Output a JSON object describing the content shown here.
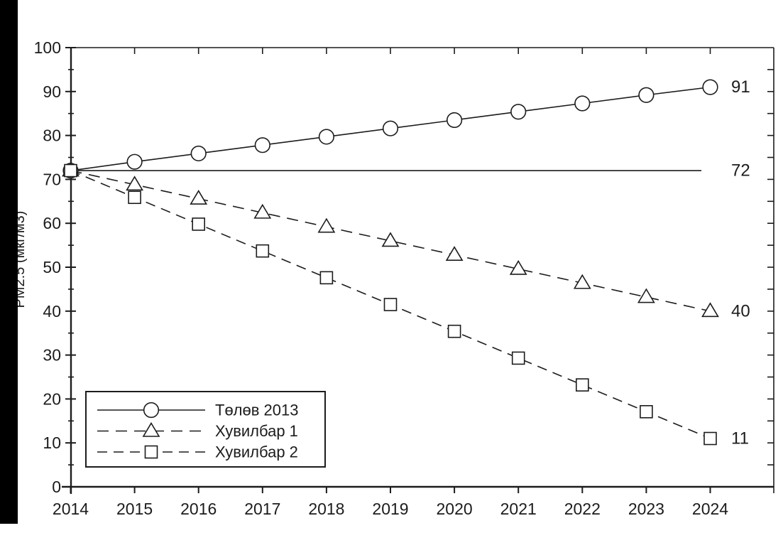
{
  "page": {
    "background_color": "#ffffff",
    "scan_bar_color": "#000000",
    "ink_color": "#1c1c1c"
  },
  "chart_data": {
    "type": "line",
    "title": "",
    "xlabel": "",
    "ylabel": "PM2.5 (мкг/м3)",
    "x": [
      2014,
      2015,
      2016,
      2017,
      2018,
      2019,
      2020,
      2021,
      2022,
      2023,
      2024
    ],
    "x_tick_labels": [
      "2014",
      "2015",
      "2016",
      "2017",
      "2018",
      "2019",
      "2020",
      "2021",
      "2022",
      "2023",
      "2024"
    ],
    "ylim": [
      0,
      100
    ],
    "y_major_ticks": [
      0,
      10,
      20,
      30,
      40,
      50,
      60,
      70,
      80,
      90,
      100
    ],
    "y_major_tick_labels": [
      "0",
      "10",
      "20",
      "30",
      "40",
      "50",
      "60",
      "70",
      "80",
      "90",
      "100"
    ],
    "y_minor_tick_step": 5,
    "grid": false,
    "series": [
      {
        "name": "Төлөв 2013",
        "marker": "circle",
        "line_style": "solid",
        "values": [
          72,
          74,
          75.9,
          77.8,
          79.7,
          81.6,
          83.5,
          85.4,
          87.3,
          89.2,
          91
        ],
        "end_label": "91"
      },
      {
        "name": "Хувилбар 1",
        "marker": "triangle",
        "line_style": "long-dash",
        "values": [
          72,
          68.8,
          65.6,
          62.4,
          59.2,
          56,
          52.8,
          49.6,
          46.4,
          43.2,
          40
        ],
        "end_label": "40"
      },
      {
        "name": "Хувилбар 2",
        "marker": "square",
        "line_style": "dash",
        "values": [
          72,
          65.9,
          59.8,
          53.7,
          47.6,
          41.5,
          35.4,
          29.3,
          23.2,
          17.1,
          11
        ],
        "end_label": "11"
      }
    ],
    "baseline": {
      "value": 72,
      "label": "72"
    },
    "legend": {
      "position": "bottom-left",
      "entries": [
        "Төлөв 2013",
        "Хувилбар 1",
        "Хувилбар 2"
      ]
    }
  }
}
